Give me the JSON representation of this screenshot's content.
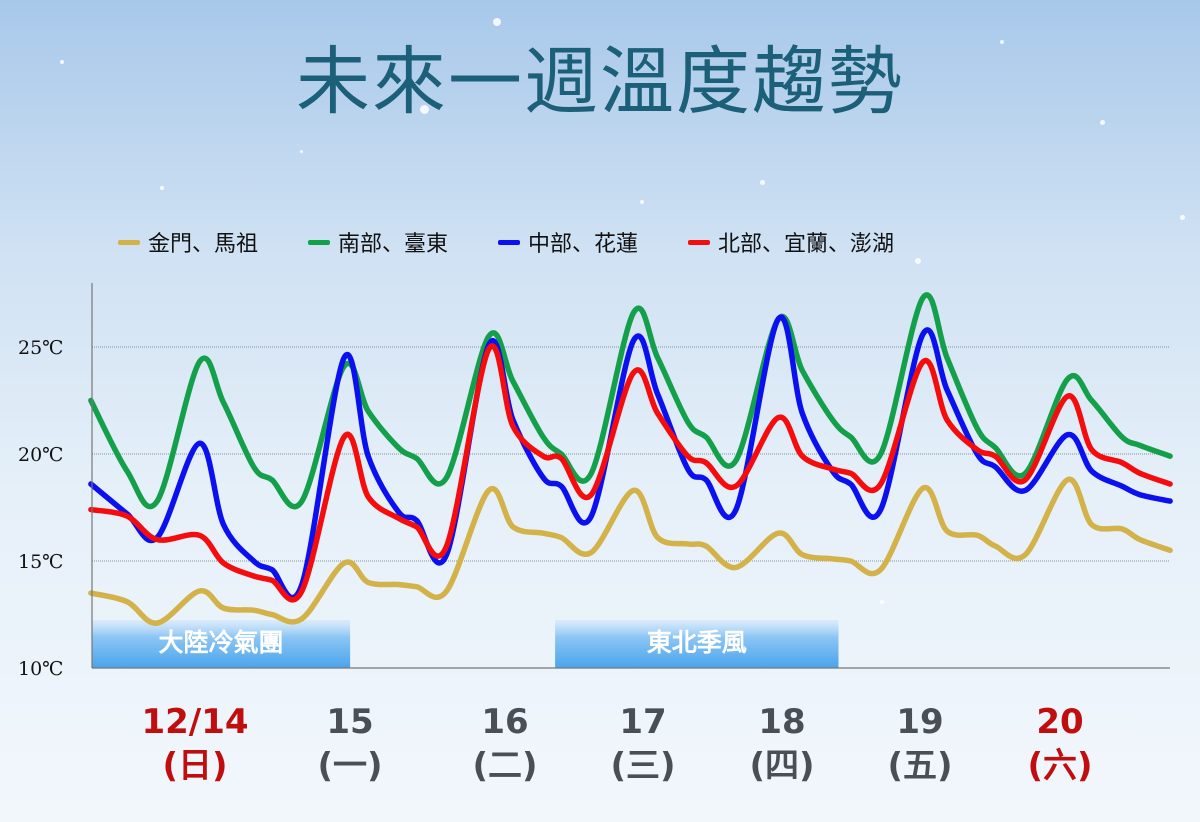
{
  "title": "未來一週溫度趨勢",
  "legend": [
    {
      "label": "金門、馬祖",
      "color": "#d4b24a"
    },
    {
      "label": "南部、臺東",
      "color": "#14a04a"
    },
    {
      "label": "中部、花蓮",
      "color": "#0a10f0"
    },
    {
      "label": "北部、宜蘭、澎湖",
      "color": "#f50d0d"
    }
  ],
  "days": [
    {
      "date": "12/14",
      "weekday": "(日)",
      "holiday": true
    },
    {
      "date": "15",
      "weekday": "(一)",
      "holiday": false
    },
    {
      "date": "16",
      "weekday": "(二)",
      "holiday": false
    },
    {
      "date": "17",
      "weekday": "(三)",
      "holiday": false
    },
    {
      "date": "18",
      "weekday": "(四)",
      "holiday": false
    },
    {
      "date": "19",
      "weekday": "(五)",
      "holiday": false
    },
    {
      "date": "20",
      "weekday": "(六)",
      "holiday": true
    }
  ],
  "chart_data": {
    "type": "line",
    "title": "未來一週溫度趨勢",
    "ylim": [
      10,
      28
    ],
    "yticks": [
      {
        "value": 10,
        "label": "10℃"
      },
      {
        "value": 15,
        "label": "15℃"
      },
      {
        "value": 20,
        "label": "20℃"
      },
      {
        "value": 25,
        "label": "25℃"
      }
    ],
    "grid": "horizontal dotted",
    "legend_position": "top",
    "x": [
      "12/13 20:00",
      "12/14 02:00",
      "12/14 07:00",
      "12/14 14:00",
      "12/14 18:00",
      "12/14 23:00",
      "12/15 02:00",
      "12/15 07:00",
      "12/15 14:00",
      "12/15 18:00",
      "12/15 23:00",
      "12/16 02:00",
      "12/16 07:00",
      "12/16 14:00",
      "12/16 18:00",
      "12/16 23:00",
      "12/17 02:00",
      "12/17 07:00",
      "12/17 14:00",
      "12/17 18:00",
      "12/17 23:00",
      "12/18 02:00",
      "12/18 07:00",
      "12/18 14:00",
      "12/18 18:00",
      "12/18 23:00",
      "12/19 02:00",
      "12/19 07:00",
      "12/19 14:00",
      "12/19 18:00",
      "12/19 23:00",
      "12/20 02:00",
      "12/20 07:00",
      "12/20 14:00",
      "12/20 18:00",
      "12/20 23:00",
      "12/21 02:00",
      "12/21 07:00"
    ],
    "series": [
      {
        "name": "金門、馬祖",
        "color": "#d4b24a",
        "values": [
          13.5,
          13.1,
          12.1,
          13.6,
          12.8,
          12.7,
          12.5,
          12.3,
          14.9,
          14.0,
          13.9,
          13.8,
          13.6,
          18.3,
          16.6,
          16.3,
          16.1,
          15.4,
          18.3,
          16.1,
          15.8,
          15.7,
          14.7,
          16.3,
          15.3,
          15.1,
          15.0,
          14.6,
          18.4,
          16.4,
          16.2,
          15.7,
          15.3,
          18.8,
          16.7,
          16.5,
          16.0,
          15.5
        ]
      },
      {
        "name": "南部、臺東",
        "color": "#14a04a",
        "values": [
          22.5,
          19.2,
          17.8,
          24.3,
          22.4,
          19.4,
          18.8,
          17.8,
          24.1,
          22.0,
          20.3,
          19.8,
          18.9,
          25.5,
          23.4,
          20.8,
          20.0,
          19.1,
          26.6,
          24.5,
          21.5,
          20.8,
          19.7,
          26.3,
          23.9,
          21.6,
          20.8,
          20.0,
          27.3,
          24.5,
          21.2,
          20.3,
          19.1,
          23.5,
          22.5,
          20.8,
          20.4,
          19.9
        ]
      },
      {
        "name": "中部、花蓮",
        "color": "#0a10f0",
        "values": [
          18.6,
          17.2,
          16.1,
          20.5,
          16.7,
          15.0,
          14.6,
          13.9,
          24.5,
          19.9,
          17.3,
          16.9,
          15.3,
          25.1,
          21.6,
          18.9,
          18.5,
          17.1,
          25.3,
          22.8,
          19.3,
          18.8,
          17.4,
          26.3,
          21.9,
          19.2,
          18.6,
          17.4,
          25.6,
          23.0,
          20.0,
          19.4,
          18.3,
          20.9,
          19.2,
          18.5,
          18.1,
          17.8
        ]
      },
      {
        "name": "北部、宜蘭、澎湖",
        "color": "#f50d0d",
        "values": [
          17.4,
          17.1,
          16.0,
          16.2,
          14.9,
          14.3,
          14.1,
          13.6,
          20.8,
          18.0,
          17.0,
          16.6,
          15.7,
          24.9,
          21.3,
          19.9,
          19.8,
          18.1,
          23.8,
          21.9,
          19.9,
          19.6,
          18.5,
          21.7,
          19.9,
          19.3,
          19.1,
          18.6,
          24.3,
          21.6,
          20.2,
          19.9,
          18.8,
          22.7,
          20.2,
          19.6,
          19.1,
          18.6
        ]
      }
    ],
    "annotations": [
      {
        "label": "大陸冷氣團",
        "from": "12/13 20:00",
        "to": "12/15 15:00"
      },
      {
        "label": "東北季風",
        "from": "12/17 01:00",
        "to": "12/19 00:00"
      }
    ]
  }
}
